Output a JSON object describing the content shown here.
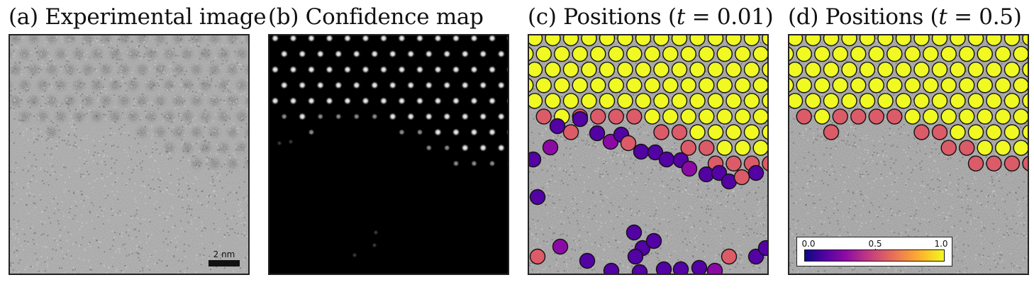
{
  "panels": [
    {
      "id": "a",
      "title_prefix": "(a) Experimental image",
      "title_math": "",
      "title_suffix": ""
    },
    {
      "id": "b",
      "title_prefix": "(b) Confidence map",
      "title_math": "",
      "title_suffix": ""
    },
    {
      "id": "c",
      "title_prefix": "(c) Positions (",
      "title_math": "t",
      "title_suffix": " = 0.01)"
    },
    {
      "id": "d",
      "title_prefix": "(d) Positions (",
      "title_math": "t",
      "title_suffix": " = 0.5)"
    }
  ],
  "scale_bar": {
    "label": "2 nm"
  },
  "colorbar": {
    "ticks": [
      "0.0",
      "0.5",
      "1.0"
    ],
    "values": [
      0.0,
      0.5,
      1.0
    ],
    "colormap": "plasma"
  },
  "colors": {
    "low": "#0d0887",
    "mid": "#b83289",
    "high": "#f0f921",
    "frame": "#222222",
    "background": "#ffffff"
  }
}
